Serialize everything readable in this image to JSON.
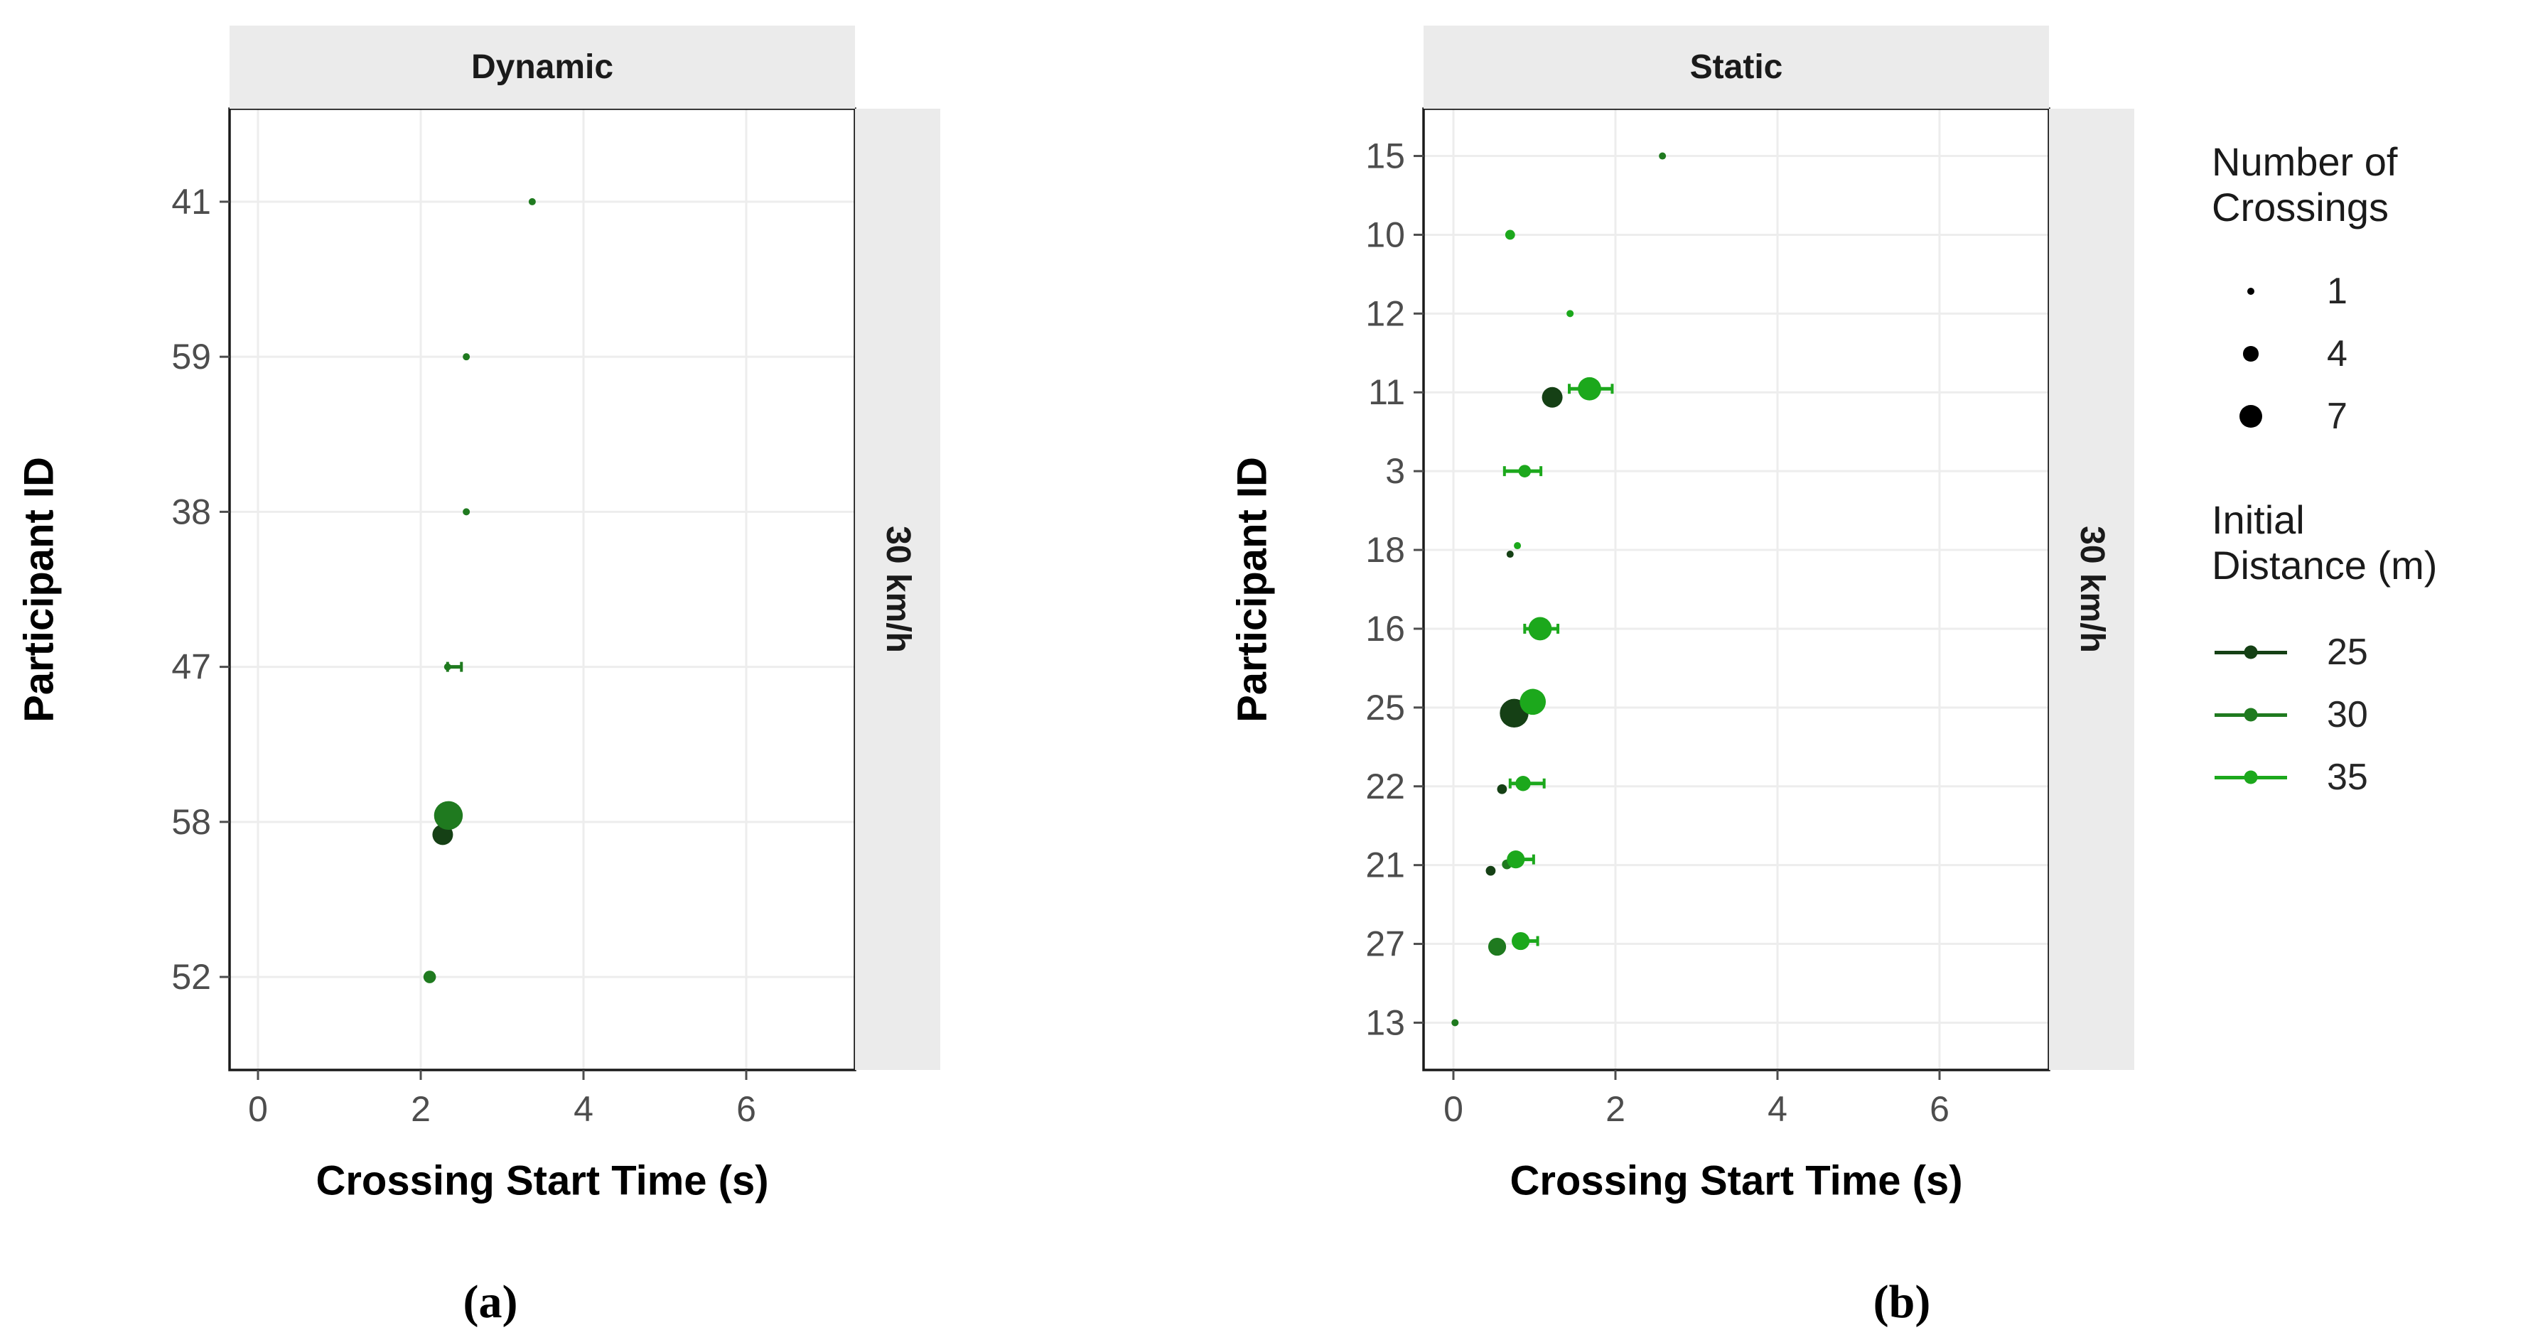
{
  "figure": {
    "background": "#ffffff",
    "caption_a": "(a)",
    "caption_b": "(b)"
  },
  "colors": {
    "strip_fill": "#ebebeb",
    "panel_border": "#1a1a1a",
    "gridline": "#ededed",
    "tick": "#4d4d4d",
    "tick_label": "#4d4d4d"
  },
  "chart_data": [
    {
      "type": "scatter",
      "facet_label": "Dynamic",
      "side_strip_label": "30 km/h",
      "xlabel": "Crossing Start Time (s)",
      "ylabel": "Participant ID",
      "x_ticks": [
        0,
        2,
        4,
        6
      ],
      "xlim": [
        -0.35,
        7.35
      ],
      "grid": "major-only",
      "rows": [
        "41",
        "59",
        "38",
        "47",
        "58",
        "52"
      ],
      "points": [
        {
          "participant": "41",
          "x": 3.37,
          "crossings": 1,
          "distance": 30,
          "dy": 0
        },
        {
          "participant": "59",
          "x": 2.56,
          "crossings": 1,
          "distance": 30,
          "dy": 0
        },
        {
          "participant": "38",
          "x": 2.56,
          "crossings": 1,
          "distance": 30,
          "dy": 0
        },
        {
          "participant": "47",
          "x": 2.33,
          "crossings": 1,
          "distance": 30,
          "dy": 0,
          "range": [
            2.33,
            2.5
          ]
        },
        {
          "participant": "58",
          "x": 2.27,
          "crossings": 6,
          "distance": 25,
          "dy": 18
        },
        {
          "participant": "58",
          "x": 2.34,
          "crossings": 9,
          "distance": 30,
          "dy": -9
        },
        {
          "participant": "52",
          "x": 2.11,
          "crossings": 3,
          "distance": 30,
          "dy": 0
        }
      ]
    },
    {
      "type": "scatter",
      "facet_label": "Static",
      "side_strip_label": "30 km/h",
      "xlabel": "Crossing Start Time (s)",
      "ylabel": "Participant ID",
      "x_ticks": [
        0,
        2,
        4,
        6
      ],
      "xlim": [
        -0.35,
        7.35
      ],
      "grid": "major-only",
      "rows": [
        "15",
        "10",
        "12",
        "11",
        "3",
        "18",
        "16",
        "25",
        "22",
        "21",
        "27",
        "13"
      ],
      "points": [
        {
          "participant": "15",
          "x": 2.58,
          "crossings": 1,
          "distance": 30,
          "dy": 0
        },
        {
          "participant": "10",
          "x": 0.7,
          "crossings": 2,
          "distance": 35,
          "dy": 0
        },
        {
          "participant": "12",
          "x": 1.44,
          "crossings": 1,
          "distance": 35,
          "dy": 0
        },
        {
          "participant": "11",
          "x": 1.22,
          "crossings": 6,
          "distance": 25,
          "dy": 7
        },
        {
          "participant": "11",
          "x": 1.68,
          "crossings": 7,
          "distance": 35,
          "dy": -5,
          "range": [
            1.43,
            1.96
          ]
        },
        {
          "participant": "3",
          "x": 0.88,
          "crossings": 3,
          "distance": 35,
          "dy": 0,
          "range": [
            0.63,
            1.08
          ]
        },
        {
          "participant": "18",
          "x": 0.7,
          "crossings": 1,
          "distance": 25,
          "dy": 6
        },
        {
          "participant": "18",
          "x": 0.79,
          "crossings": 1,
          "distance": 35,
          "dy": -6
        },
        {
          "participant": "16",
          "x": 1.07,
          "crossings": 7,
          "distance": 35,
          "dy": 0,
          "range": [
            0.88,
            1.29
          ]
        },
        {
          "participant": "25",
          "x": 0.75,
          "crossings": 9,
          "distance": 25,
          "dy": 8
        },
        {
          "participant": "25",
          "x": 0.98,
          "crossings": 8,
          "distance": 35,
          "dy": -8
        },
        {
          "participant": "22",
          "x": 0.6,
          "crossings": 2,
          "distance": 25,
          "dy": 4
        },
        {
          "participant": "22",
          "x": 0.86,
          "crossings": 4,
          "distance": 35,
          "dy": -4,
          "range": [
            0.7,
            1.12
          ]
        },
        {
          "participant": "21",
          "x": 0.46,
          "crossings": 2,
          "distance": 25,
          "dy": 8
        },
        {
          "participant": "21",
          "x": 0.66,
          "crossings": 2,
          "distance": 30,
          "dy": -1
        },
        {
          "participant": "21",
          "x": 0.77,
          "crossings": 5,
          "distance": 35,
          "dy": -8,
          "range": [
            0.72,
            0.99
          ]
        },
        {
          "participant": "27",
          "x": 0.54,
          "crossings": 5,
          "distance": 30,
          "dy": 4
        },
        {
          "participant": "27",
          "x": 0.83,
          "crossings": 5,
          "distance": 35,
          "dy": -4,
          "range": [
            0.78,
            1.04
          ]
        },
        {
          "participant": "13",
          "x": 0.02,
          "crossings": 1,
          "distance": 30,
          "dy": 0
        }
      ]
    }
  ],
  "legend": {
    "size": {
      "title_lines": [
        "Number of",
        "Crossings"
      ],
      "entries": [
        {
          "label": "1",
          "n": 1
        },
        {
          "label": "4",
          "n": 4
        },
        {
          "label": "7",
          "n": 7
        }
      ]
    },
    "color": {
      "title_lines": [
        "Initial",
        "Distance (m)"
      ],
      "entries": [
        {
          "label": "25",
          "value": 25,
          "hex": "#154015"
        },
        {
          "label": "30",
          "value": 30,
          "hex": "#1f7a1f"
        },
        {
          "label": "35",
          "value": 35,
          "hex": "#1ca81c"
        }
      ]
    }
  }
}
